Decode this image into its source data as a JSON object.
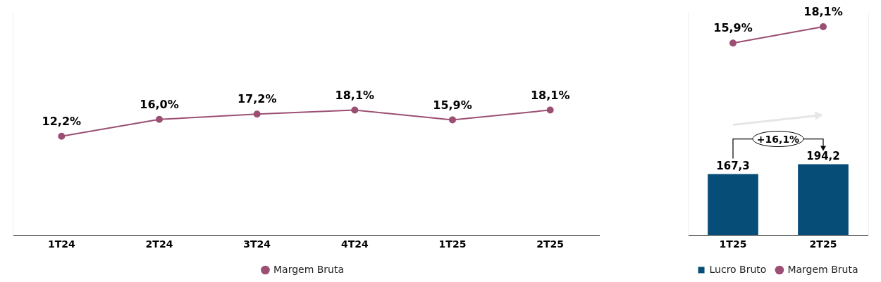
{
  "chart_data": [
    {
      "type": "line",
      "categories": [
        "1T24",
        "2T24",
        "3T24",
        "4T24",
        "1T25",
        "2T25"
      ],
      "series": [
        {
          "name": "Margem Bruta",
          "color": "#9b4f73",
          "values": [
            12.2,
            16.0,
            17.2,
            18.1,
            15.9,
            18.1
          ],
          "value_labels": [
            "12,2%",
            "16,0%",
            "17,2%",
            "18,1%",
            "15,9%",
            "18,1%"
          ]
        }
      ],
      "ylim": [
        -10,
        40
      ],
      "tick_labels": "x",
      "marker": "circle",
      "legend": "bottom"
    },
    {
      "type": "bar",
      "categories": [
        "1T25",
        "2T25"
      ],
      "series": [
        {
          "name": "Lucro Bruto",
          "type": "bar",
          "color": "#064d78",
          "values": [
            167.3,
            194.2
          ],
          "value_labels": [
            "167,3",
            "194,2"
          ]
        },
        {
          "name": "Margem Bruta",
          "type": "line",
          "axis": "y2",
          "color": "#9b4f73",
          "values": [
            15.9,
            18.1
          ],
          "value_labels": [
            "15,9%",
            "18,1%"
          ]
        }
      ],
      "ylim": [
        0,
        610
      ],
      "y2lim": [
        -10,
        20
      ],
      "tick_labels": "x",
      "marker": "circle",
      "legend": "bottom",
      "annotations": [
        "+16,1%"
      ]
    }
  ]
}
